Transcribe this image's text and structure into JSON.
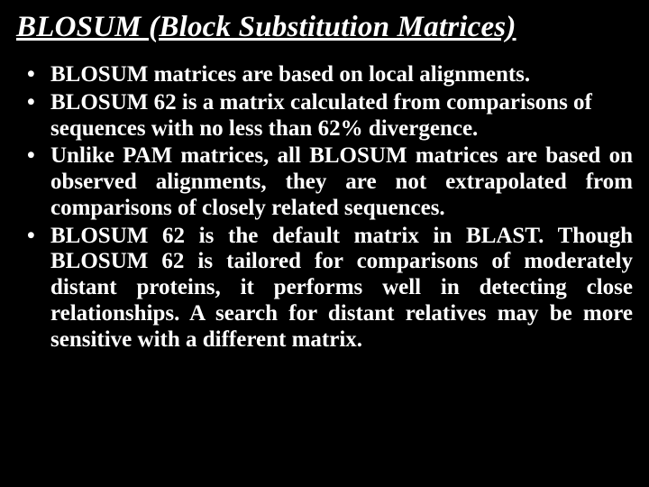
{
  "slide": {
    "title": "BLOSUM (Block Substitution Matrices)",
    "bullets": [
      "BLOSUM matrices are based on local alignments.",
      "BLOSUM 62 is a matrix calculated from comparisons of sequences with no less than 62% divergence.",
      "Unlike PAM matrices, all BLOSUM matrices are based on observed alignments, they are not extrapolated from comparisons of closely related sequences.",
      "BLOSUM 62 is the default matrix in BLAST. Though BLOSUM 62 is tailored for comparisons of moderately distant proteins, it performs well in detecting close relationships. A search for distant relatives may be more sensitive with a different matrix."
    ]
  },
  "style": {
    "background_color": "#000000",
    "text_color": "#ffffff",
    "font_family": "Times New Roman",
    "title_fontsize": 33,
    "title_italic": true,
    "title_bold": true,
    "title_underline": true,
    "body_fontsize": 25,
    "body_bold": true,
    "bullet_char": "•",
    "justify_indices": [
      2,
      3
    ]
  }
}
